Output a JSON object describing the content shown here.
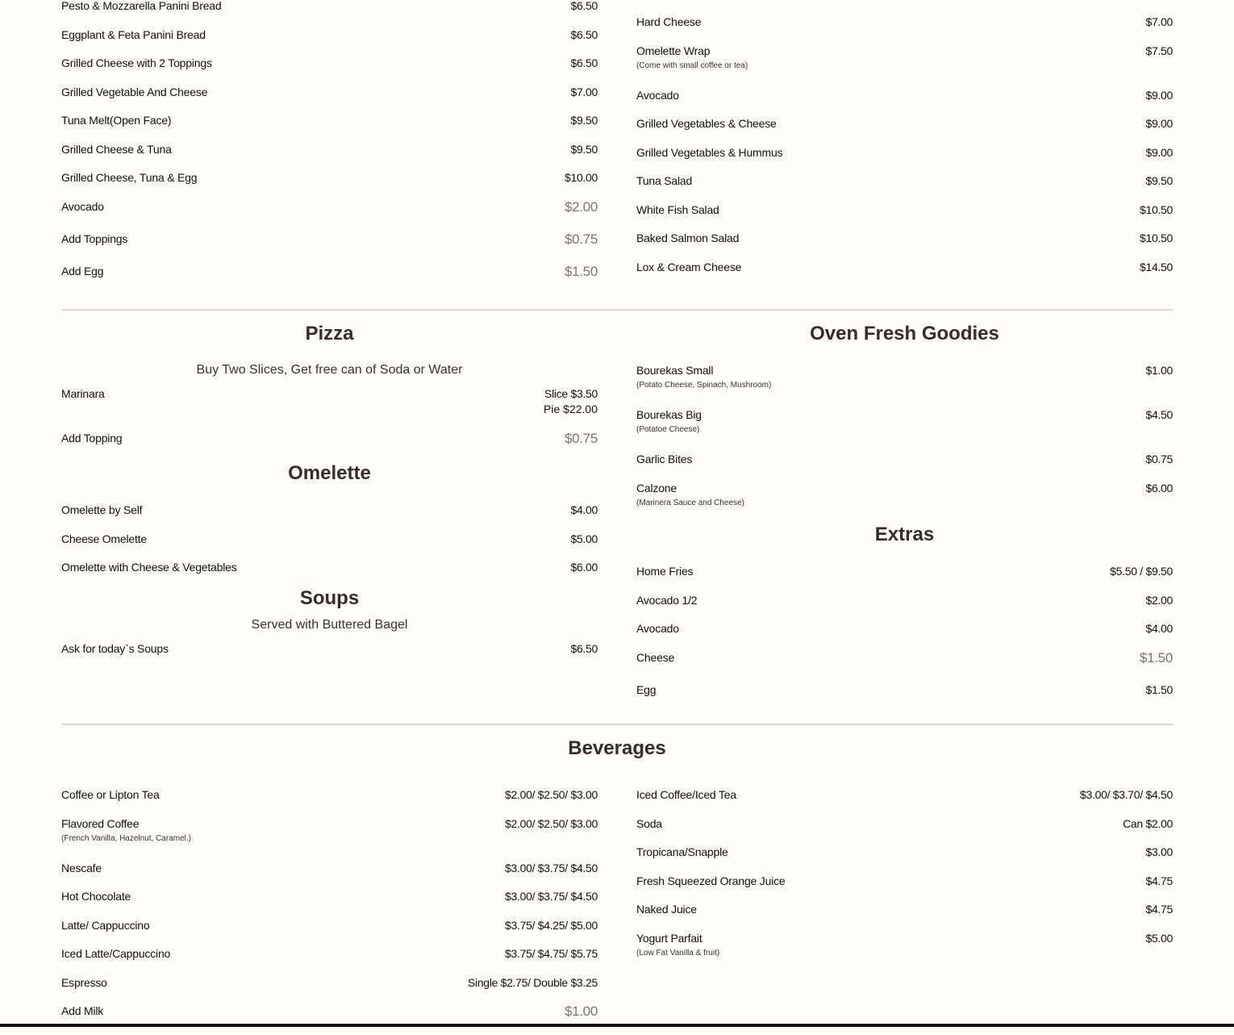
{
  "top": {
    "left": [
      {
        "name": "Pesto & Mozzarella Panini Bread",
        "price": "$6.50"
      },
      {
        "name": "Eggplant & Feta Panini Bread",
        "price": "$6.50"
      },
      {
        "name": "Grilled Cheese with 2 Toppings",
        "price": "$6.50"
      },
      {
        "name": "Grilled Vegetable And Cheese",
        "price": "$7.00"
      },
      {
        "name": "Tuna Melt(Open Face)",
        "price": "$9.50"
      },
      {
        "name": "Grilled Cheese & Tuna",
        "price": "$9.50"
      },
      {
        "name": "Grilled Cheese, Tuna & Egg",
        "price": "$10.00"
      },
      {
        "name": "Avocado",
        "price": "$2.00",
        "price_style": "addon"
      },
      {
        "name": "Add Toppings",
        "price": "$0.75",
        "price_style": "addon"
      },
      {
        "name": "Add Egg",
        "price": "$1.50",
        "price_style": "addon"
      }
    ],
    "right": [
      {
        "name": "Hard Cheese",
        "price": "$7.00"
      },
      {
        "name": "Omelette Wrap",
        "price": "$7.50",
        "note": "(Come with small coffee or tea)"
      },
      {
        "name": "Avocado",
        "price": "$9.00"
      },
      {
        "name": "Grilled Vegetables & Cheese",
        "price": "$9.00"
      },
      {
        "name": "Grilled Vegetables & Hummus",
        "price": "$9.00"
      },
      {
        "name": "Tuna Salad",
        "price": "$9.50"
      },
      {
        "name": "White Fish Salad",
        "price": "$10.50"
      },
      {
        "name": "Baked Salmon Salad",
        "price": "$10.50"
      },
      {
        "name": "Lox & Cream Cheese",
        "price": "$14.50"
      }
    ]
  },
  "pizza": {
    "title": "Pizza",
    "subtitle": "Buy Two Slices, Get free can of Soda or Water",
    "items": [
      {
        "name": "Marinara",
        "price": "Slice $3.50",
        "price2": "Pie $22.00"
      },
      {
        "name": "Add Topping",
        "price": "$0.75",
        "price_style": "addon"
      }
    ]
  },
  "omelette": {
    "title": "Omelette",
    "items": [
      {
        "name": "Omelette by Self",
        "price": "$4.00"
      },
      {
        "name": "Cheese Omelette",
        "price": "$5.00"
      },
      {
        "name": "Omelette with Cheese & Vegetables",
        "price": "$6.00"
      }
    ]
  },
  "soups": {
    "title": "Soups",
    "subtitle": "Served with Buttered Bagel",
    "items": [
      {
        "name": "Ask for today`s Soups",
        "price": "$6.50"
      }
    ]
  },
  "oven": {
    "title": "Oven Fresh Goodies",
    "items": [
      {
        "name": "Bourekas Small",
        "price": "$1.00",
        "note": "(Potato Cheese, Spinach, Mushroom)"
      },
      {
        "name": "Bourekas Big",
        "price": "$4.50",
        "note": "(Potatoe Cheese)"
      },
      {
        "name": "Garlic Bites",
        "price": "$0.75"
      },
      {
        "name": "Calzone",
        "price": "$6.00",
        "note": "(Marinera Sauce and Cheese)"
      }
    ]
  },
  "extras": {
    "title": "Extras",
    "items": [
      {
        "name": "Home Fries",
        "price": "$5.50 / $9.50"
      },
      {
        "name": "Avocado 1/2",
        "price": "$2.00"
      },
      {
        "name": "Avocado",
        "price": "$4.00"
      },
      {
        "name": "Cheese",
        "price": "$1.50",
        "price_style": "addon"
      },
      {
        "name": "Egg",
        "price": "$1.50"
      }
    ]
  },
  "beverages": {
    "title": "Beverages",
    "left": [
      {
        "name": "Coffee or Lipton Tea",
        "price": "$2.00/ $2.50/ $3.00"
      },
      {
        "name": "Flavored Coffee",
        "price": "$2.00/ $2.50/ $3.00",
        "note": "(French Vanilla, Hazelnut, Caramel.)"
      },
      {
        "name": "Nescafe",
        "price": "$3.00/ $3.75/ $4.50"
      },
      {
        "name": "Hot Chocolate",
        "price": "$3.00/ $3.75/ $4.50"
      },
      {
        "name": "Latte/ Cappuccino",
        "price": "$3.75/ $4.25/ $5.00"
      },
      {
        "name": "Iced Latte/Cappuccino",
        "price": "$3.75/ $4.75/ $5.75"
      },
      {
        "name": "Espresso",
        "price": "Single $2.75/ Double $3.25"
      },
      {
        "name": "Add Milk",
        "price": "$1.00",
        "price_style": "addon"
      }
    ],
    "right": [
      {
        "name": "Iced Coffee/Iced Tea",
        "price": "$3.00/ $3.70/ $4.50"
      },
      {
        "name": "Soda",
        "price": "Can $2.00"
      },
      {
        "name": "Tropicana/Snapple",
        "price": "$3.00"
      },
      {
        "name": "Fresh Squeezed Orange Juice",
        "price": "$4.75"
      },
      {
        "name": "Naked Juice",
        "price": "$4.75"
      },
      {
        "name": "Yogurt Parfait",
        "price": "$5.00",
        "note": "(Low Fat Vanilla & fruit)"
      }
    ]
  }
}
